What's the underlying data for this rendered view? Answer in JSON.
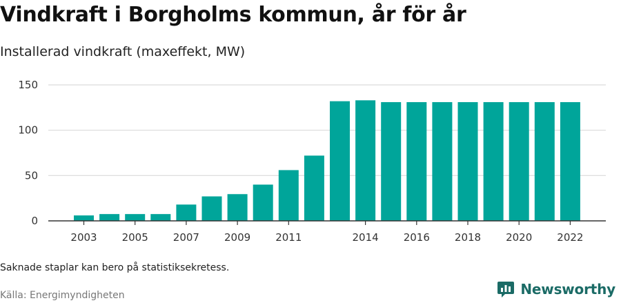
{
  "title": "Vindkraft i Borgholms kommun, år för år",
  "subtitle": "Installerad vindkraft (maxeffekt, MW)",
  "note": "Saknade staplar kan bero på statistiksekretess.",
  "source": "Källa: Energimyndigheten",
  "brand": {
    "name": "Newsworthy",
    "icon": "newsworthy-logo-icon"
  },
  "colors": {
    "bar": "#00a59a",
    "grid": "#d9d9d9",
    "axis": "#333333",
    "brand": "#1b6b66"
  },
  "chart_data": {
    "type": "bar",
    "categories": [
      "2003",
      "2004",
      "2005",
      "2006",
      "2007",
      "2008",
      "2009",
      "2010",
      "2011",
      "2012",
      "2013",
      "2014",
      "2015",
      "2016",
      "2017",
      "2018",
      "2019",
      "2020",
      "2021",
      "2022"
    ],
    "values": [
      6,
      7.5,
      7.5,
      7.5,
      18,
      27,
      29.5,
      40,
      56,
      72,
      132,
      133,
      131,
      131,
      131,
      131,
      131,
      131,
      131,
      131
    ],
    "tick_labels": [
      "2003",
      "2005",
      "2007",
      "2009",
      "2011",
      "2014",
      "2016",
      "2018",
      "2020",
      "2022"
    ],
    "yticks": [
      0,
      50,
      100,
      150
    ],
    "ylim": [
      0,
      150
    ],
    "grid": true,
    "xlabel": "",
    "ylabel": ""
  }
}
